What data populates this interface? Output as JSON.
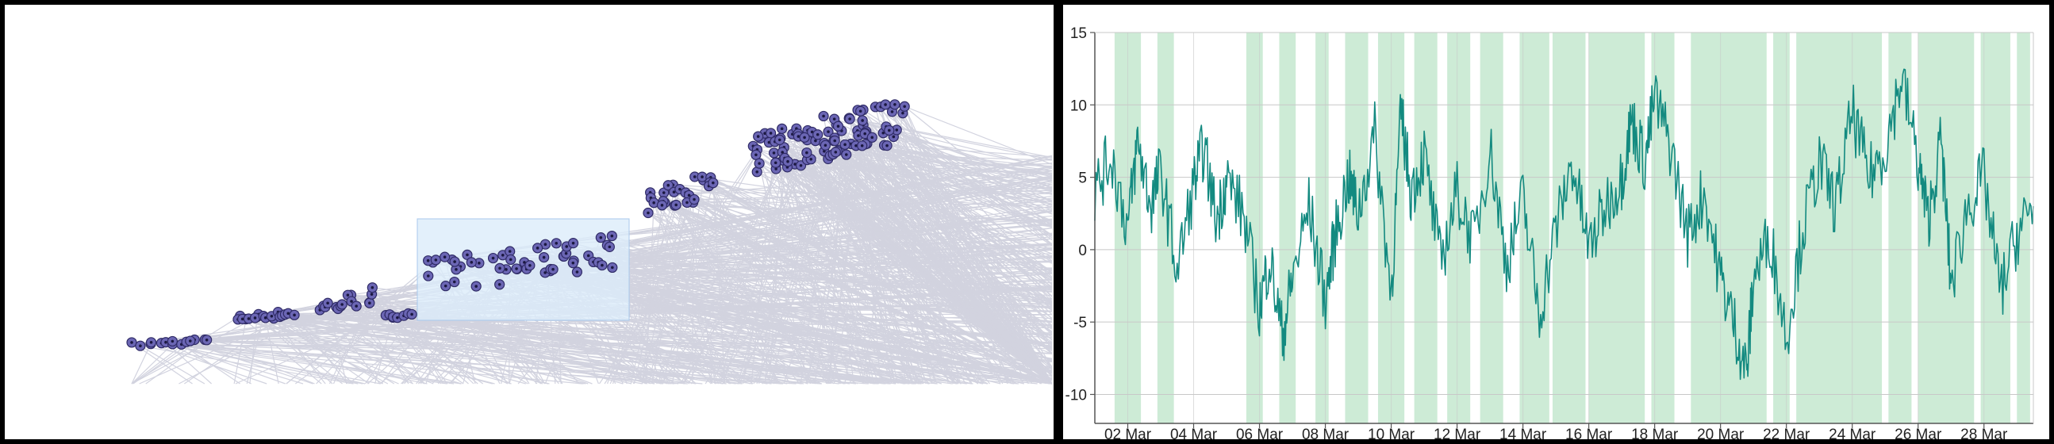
{
  "colors": {
    "page_border": "#000000",
    "link_line": "#d2d3df",
    "node_fill": "#6b66b4",
    "node_stroke": "#2f2b66",
    "node_center": "#1b1840",
    "brush_fill": "#dcecfa",
    "brush_stroke": "#a8c8ec",
    "band_fill": "#cdebd6",
    "series_line": "#138a80",
    "grid": "#c8c8c8",
    "axis": "#555555"
  },
  "chart_data": [
    {
      "type": "scatter",
      "description_note": "",
      "node_clusters": [
        {
          "x_range": [
            160,
            260
          ],
          "y_range": [
            420,
            432
          ],
          "count": 14
        },
        {
          "x_range": [
            285,
            370
          ],
          "y_range": [
            385,
            400
          ],
          "count": 18
        },
        {
          "x_range": [
            385,
            475
          ],
          "y_range": [
            355,
            395
          ],
          "count": 16
        },
        {
          "x_range": [
            475,
            515
          ],
          "y_range": [
            385,
            398
          ],
          "count": 8
        },
        {
          "x_range": [
            520,
            790
          ],
          "y_range": [
            285,
            365
          ],
          "count": 52
        },
        {
          "x_range": [
            805,
            900
          ],
          "y_range": [
            208,
            268
          ],
          "count": 26
        },
        {
          "x_range": [
            925,
            1140
          ],
          "y_range": [
            118,
            218
          ],
          "count": 95
        }
      ],
      "brush_selection": {
        "x_range": [
          520,
          787
        ],
        "y_range": [
          270,
          398
        ]
      }
    },
    {
      "type": "line",
      "title": "",
      "xlabel": "",
      "ylabel": "",
      "x_tick_labels": [
        "02 Mar",
        "04 Mar",
        "06 Mar",
        "08 Mar",
        "10 Mar",
        "12 Mar",
        "14 Mar",
        "16 Mar",
        "18 Mar",
        "20 Mar",
        "22 Mar",
        "24 Mar",
        "26 Mar",
        "28 Mar"
      ],
      "x_range_days": [
        0.0,
        28.5
      ],
      "y_ticks": [
        15,
        10,
        5,
        0,
        -5,
        -10
      ],
      "ylim": [
        -12,
        15
      ],
      "grid": true,
      "series": [
        {
          "x_days": [
            0.0,
            0.5,
            1.0,
            1.3,
            1.7,
            2.0,
            2.5,
            3.0,
            3.3,
            3.7,
            4.0,
            4.5,
            5.0,
            5.3,
            5.7,
            6.0,
            6.5,
            7.0,
            7.3,
            7.7,
            8.0,
            8.5,
            9.0,
            9.3,
            9.6,
            10.0,
            10.5,
            11.0,
            11.5,
            12.0,
            12.5,
            13.0,
            13.5,
            14.0,
            14.5,
            15.0,
            15.5,
            16.0,
            16.3,
            16.7,
            17.0,
            17.5,
            18.0,
            18.5,
            19.0,
            19.4,
            19.8,
            20.0,
            20.5,
            21.0,
            21.5,
            22.0,
            22.5,
            23.0,
            23.5,
            24.0,
            24.5,
            25.0,
            25.3,
            25.7,
            26.0,
            26.5,
            27.0,
            27.5,
            28.0,
            28.5
          ],
          "y": [
            4.0,
            6.5,
            1.5,
            7.5,
            3.0,
            5.5,
            -1.5,
            4.5,
            7.0,
            2.0,
            5.0,
            2.5,
            -4.0,
            -0.5,
            -6.0,
            -2.0,
            3.0,
            -3.5,
            1.0,
            5.0,
            2.5,
            8.0,
            -3.0,
            9.5,
            4.0,
            6.5,
            -1.0,
            4.0,
            0.5,
            7.0,
            -1.0,
            3.5,
            -4.5,
            1.5,
            6.0,
            0.0,
            3.0,
            5.0,
            9.0,
            6.0,
            10.5,
            7.0,
            1.0,
            4.0,
            -2.0,
            -5.0,
            -8.5,
            -2.0,
            1.0,
            -6.0,
            1.5,
            6.0,
            3.0,
            9.5,
            5.0,
            7.0,
            12.0,
            6.0,
            2.0,
            7.5,
            -2.5,
            3.0,
            5.0,
            -3.0,
            1.0,
            3.0
          ]
        }
      ],
      "shaded_bands_days": [
        [
          0.6,
          1.4
        ],
        [
          1.9,
          2.4
        ],
        [
          4.6,
          5.1
        ],
        [
          5.6,
          6.1
        ],
        [
          6.7,
          7.1
        ],
        [
          7.6,
          8.3
        ],
        [
          8.6,
          9.4
        ],
        [
          9.7,
          10.4
        ],
        [
          10.7,
          11.4
        ],
        [
          11.7,
          12.4
        ],
        [
          12.9,
          13.8
        ],
        [
          13.9,
          14.9
        ],
        [
          15.0,
          16.7
        ],
        [
          16.9,
          17.6
        ],
        [
          18.1,
          20.4
        ],
        [
          20.6,
          21.1
        ],
        [
          21.3,
          23.9
        ],
        [
          24.1,
          24.8
        ],
        [
          25.0,
          26.7
        ],
        [
          26.9,
          27.8
        ],
        [
          28.0,
          28.4
        ]
      ]
    }
  ]
}
